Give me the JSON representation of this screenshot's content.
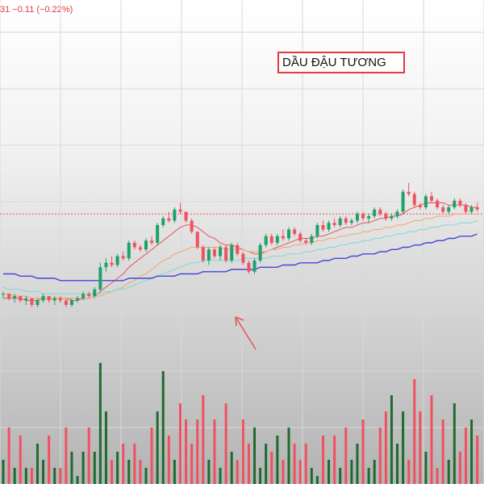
{
  "header": {
    "price_readout": "31  −0.11 (−0.22%)"
  },
  "annotation": {
    "title": "DẦU ĐẬU TƯƠNG",
    "arrow": "red-arrow-up-left"
  },
  "colors": {
    "up": "#22a06b",
    "down": "#ef5360",
    "vol_up": "#1e6b2e",
    "vol_down": "#f2505f",
    "ma_red": "#e8555c",
    "ma_orange": "#f2a66a",
    "ma_cyan": "#7fd6d6",
    "ma_blue": "#4646d8",
    "ref_line": "#e8555c"
  },
  "chart_data": {
    "type": "candlestick",
    "title": "DẦU ĐẬU TƯƠNG",
    "note": "price axis not visible; values in relative units (0 = bottom, 100 = top of price pane)",
    "reference_level": 69,
    "candles": [
      [
        33,
        34,
        31,
        33
      ],
      [
        33,
        33,
        30,
        31
      ],
      [
        31,
        33,
        29,
        32
      ],
      [
        32,
        32,
        29,
        30
      ],
      [
        30,
        32,
        28,
        31
      ],
      [
        31,
        31,
        27,
        28
      ],
      [
        28,
        31,
        27,
        30
      ],
      [
        30,
        33,
        29,
        32
      ],
      [
        32,
        32,
        29,
        30
      ],
      [
        30,
        32,
        28,
        31
      ],
      [
        31,
        32,
        29,
        30
      ],
      [
        30,
        31,
        27,
        28
      ],
      [
        28,
        31,
        27,
        30
      ],
      [
        30,
        32,
        29,
        31
      ],
      [
        31,
        34,
        30,
        33
      ],
      [
        33,
        34,
        31,
        32
      ],
      [
        32,
        36,
        31,
        35
      ],
      [
        35,
        47,
        34,
        45
      ],
      [
        45,
        49,
        43,
        47
      ],
      [
        47,
        50,
        45,
        46
      ],
      [
        46,
        51,
        45,
        50
      ],
      [
        50,
        52,
        48,
        49
      ],
      [
        49,
        57,
        48,
        56
      ],
      [
        56,
        57,
        53,
        54
      ],
      [
        54,
        55,
        52,
        53
      ],
      [
        53,
        58,
        52,
        57
      ],
      [
        57,
        59,
        55,
        56
      ],
      [
        56,
        65,
        55,
        64
      ],
      [
        64,
        68,
        63,
        67
      ],
      [
        67,
        70,
        65,
        66
      ],
      [
        66,
        72,
        65,
        71
      ],
      [
        71,
        74,
        69,
        70
      ],
      [
        70,
        70,
        65,
        66
      ],
      [
        66,
        67,
        60,
        61
      ],
      [
        61,
        61,
        53,
        54
      ],
      [
        54,
        55,
        47,
        48
      ],
      [
        48,
        54,
        46,
        53
      ],
      [
        53,
        54,
        49,
        50
      ],
      [
        50,
        55,
        48,
        54
      ],
      [
        54,
        55,
        47,
        48
      ],
      [
        48,
        56,
        47,
        55
      ],
      [
        55,
        56,
        50,
        51
      ],
      [
        51,
        52,
        46,
        47
      ],
      [
        47,
        48,
        42,
        43
      ],
      [
        43,
        49,
        42,
        48
      ],
      [
        48,
        56,
        47,
        55
      ],
      [
        55,
        60,
        54,
        59
      ],
      [
        59,
        60,
        55,
        56
      ],
      [
        56,
        60,
        55,
        59
      ],
      [
        59,
        62,
        57,
        58
      ],
      [
        58,
        63,
        57,
        62
      ],
      [
        62,
        63,
        59,
        60
      ],
      [
        60,
        61,
        56,
        57
      ],
      [
        57,
        58,
        55,
        56
      ],
      [
        56,
        60,
        55,
        59
      ],
      [
        59,
        65,
        58,
        64
      ],
      [
        64,
        66,
        61,
        62
      ],
      [
        62,
        66,
        61,
        65
      ],
      [
        65,
        67,
        63,
        64
      ],
      [
        64,
        68,
        63,
        67
      ],
      [
        67,
        68,
        64,
        65
      ],
      [
        65,
        67,
        64,
        66
      ],
      [
        66,
        70,
        65,
        69
      ],
      [
        69,
        70,
        66,
        67
      ],
      [
        67,
        69,
        65,
        68
      ],
      [
        68,
        72,
        67,
        71
      ],
      [
        71,
        72,
        68,
        69
      ],
      [
        69,
        70,
        66,
        67
      ],
      [
        67,
        69,
        66,
        68
      ],
      [
        68,
        71,
        67,
        70
      ],
      [
        70,
        80,
        69,
        79
      ],
      [
        79,
        83,
        77,
        78
      ],
      [
        78,
        79,
        72,
        73
      ],
      [
        73,
        74,
        71,
        72
      ],
      [
        72,
        78,
        71,
        77
      ],
      [
        77,
        79,
        74,
        75
      ],
      [
        75,
        76,
        71,
        72
      ],
      [
        72,
        73,
        69,
        70
      ],
      [
        70,
        73,
        69,
        72
      ],
      [
        72,
        76,
        71,
        75
      ],
      [
        75,
        76,
        72,
        73
      ],
      [
        73,
        74,
        69,
        70
      ],
      [
        70,
        73,
        69,
        72
      ],
      [
        72,
        74,
        70,
        71
      ]
    ],
    "moving_averages": [
      {
        "values": [
          31,
          31,
          31,
          31,
          30,
          30,
          30,
          31,
          31,
          31,
          31,
          31,
          30,
          30,
          31,
          31,
          32,
          34,
          36,
          38,
          40,
          42,
          45,
          47,
          49,
          51,
          53,
          55,
          57,
          59,
          61,
          63,
          64,
          64,
          63,
          61,
          59,
          58,
          56,
          55,
          55,
          54,
          53,
          52,
          51,
          51,
          52,
          53,
          54,
          55,
          56,
          57,
          58,
          58,
          58,
          59,
          59,
          60,
          61,
          62,
          63,
          63,
          64,
          65,
          65,
          66,
          67,
          67,
          68,
          68,
          69,
          71,
          72,
          73,
          74,
          74,
          74,
          74,
          73,
          73,
          73,
          73,
          72,
          72
        ]
      },
      {
        "values": [
          33,
          33,
          32,
          32,
          32,
          31,
          31,
          31,
          31,
          31,
          31,
          31,
          31,
          31,
          31,
          31,
          32,
          32,
          33,
          34,
          35,
          36,
          38,
          39,
          41,
          42,
          44,
          46,
          48,
          49,
          51,
          52,
          53,
          54,
          54,
          54,
          54,
          54,
          54,
          53,
          53,
          53,
          53,
          52,
          52,
          52,
          52,
          53,
          53,
          54,
          54,
          55,
          55,
          56,
          56,
          57,
          57,
          58,
          58,
          59,
          59,
          60,
          60,
          61,
          61,
          62,
          62,
          63,
          63,
          64,
          64,
          65,
          66,
          66,
          67,
          67,
          68,
          68,
          68,
          69,
          69,
          69,
          69,
          69
        ]
      },
      {
        "values": [
          36,
          35,
          35,
          35,
          34,
          34,
          34,
          33,
          33,
          33,
          33,
          33,
          33,
          33,
          33,
          33,
          33,
          33,
          34,
          34,
          35,
          35,
          36,
          37,
          38,
          39,
          40,
          41,
          42,
          43,
          44,
          45,
          46,
          47,
          47,
          48,
          48,
          48,
          48,
          48,
          48,
          48,
          49,
          49,
          49,
          49,
          49,
          50,
          50,
          50,
          51,
          51,
          51,
          52,
          52,
          53,
          53,
          54,
          54,
          55,
          55,
          56,
          56,
          57,
          57,
          58,
          58,
          59,
          59,
          60,
          60,
          61,
          61,
          62,
          62,
          63,
          63,
          64,
          64,
          64,
          65,
          65,
          65,
          66
        ]
      },
      {
        "values": [
          42,
          42,
          42,
          41,
          41,
          41,
          40,
          40,
          40,
          40,
          39,
          39,
          39,
          39,
          39,
          39,
          39,
          39,
          39,
          39,
          39,
          39,
          40,
          40,
          40,
          40,
          40,
          41,
          41,
          41,
          41,
          42,
          42,
          42,
          42,
          43,
          43,
          43,
          43,
          43,
          44,
          44,
          44,
          44,
          44,
          45,
          45,
          45,
          45,
          46,
          46,
          46,
          47,
          47,
          47,
          47,
          48,
          48,
          49,
          49,
          49,
          50,
          50,
          51,
          51,
          51,
          52,
          52,
          53,
          53,
          54,
          54,
          55,
          55,
          56,
          56,
          57,
          57,
          58,
          58,
          59,
          59,
          59,
          60
        ]
      }
    ],
    "volume": [
      3,
      7,
      2,
      6,
      2,
      2,
      5,
      3,
      6,
      2,
      2,
      7,
      4,
      1,
      4,
      7,
      4,
      15,
      9,
      3,
      4,
      5,
      3,
      5,
      3,
      2,
      7,
      9,
      14,
      6,
      3,
      10,
      8,
      5,
      8,
      11,
      3,
      8,
      2,
      10,
      4,
      3,
      8,
      5,
      7,
      2,
      5,
      4,
      6,
      3,
      7,
      5,
      3,
      5,
      2,
      1,
      6,
      3,
      6,
      2,
      7,
      3,
      5,
      8,
      2,
      3,
      7,
      9,
      11,
      5,
      9,
      3,
      13,
      9,
      4,
      11,
      2,
      8,
      3,
      10,
      4,
      7,
      8,
      6
    ]
  }
}
